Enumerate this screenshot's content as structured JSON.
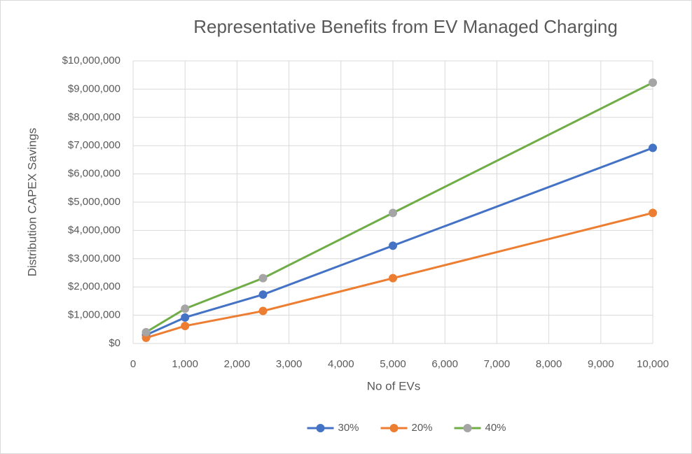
{
  "chart_data": {
    "type": "line",
    "title": "Representative Benefits from EV Managed Charging",
    "x_label": "No of EVs",
    "y_label": "Distribution CAPEX Savings",
    "x": [
      250,
      1000,
      2500,
      5000,
      10000
    ],
    "series": [
      {
        "name": "30%",
        "color": "#4472c4",
        "marker_color": "#4472c4",
        "values": [
          300000,
          920000,
          1730000,
          3460000,
          6920000
        ]
      },
      {
        "name": "20%",
        "color": "#ed7d31",
        "marker_color": "#ed7d31",
        "values": [
          200000,
          620000,
          1150000,
          2310000,
          4620000
        ]
      },
      {
        "name": "40%",
        "color": "#70ad47",
        "marker_color": "#a5a5a5",
        "values": [
          400000,
          1230000,
          2310000,
          4620000,
          9230000
        ]
      }
    ],
    "xlim": [
      0,
      10000
    ],
    "xticks": [
      0,
      {
        "value": 1000,
        "label": "1,000"
      },
      {
        "value": 2000,
        "label": "2,000"
      },
      {
        "value": 3000,
        "label": "3,000"
      },
      {
        "value": 4000,
        "label": "4,000"
      },
      {
        "value": 5000,
        "label": "5,000"
      },
      {
        "value": 6000,
        "label": "6,000"
      },
      {
        "value": 7000,
        "label": "7,000"
      },
      {
        "value": 8000,
        "label": "8,000"
      },
      {
        "value": 9000,
        "label": "9,000"
      },
      {
        "value": 10000,
        "label": "10,000"
      }
    ],
    "ylim": [
      0,
      10000000
    ],
    "yticks": [
      {
        "value": 0,
        "label": "$0"
      },
      {
        "value": 1000000,
        "label": "$1,000,000"
      },
      {
        "value": 2000000,
        "label": "$2,000,000"
      },
      {
        "value": 3000000,
        "label": "$3,000,000"
      },
      {
        "value": 4000000,
        "label": "$4,000,000"
      },
      {
        "value": 5000000,
        "label": "$5,000,000"
      },
      {
        "value": 6000000,
        "label": "$6,000,000"
      },
      {
        "value": 7000000,
        "label": "$7,000,000"
      },
      {
        "value": 8000000,
        "label": "$8,000,000"
      },
      {
        "value": 9000000,
        "label": "$9,000,000"
      },
      {
        "value": 10000000,
        "label": "$10,000,000"
      }
    ],
    "grid": true,
    "legend": "bottom"
  }
}
